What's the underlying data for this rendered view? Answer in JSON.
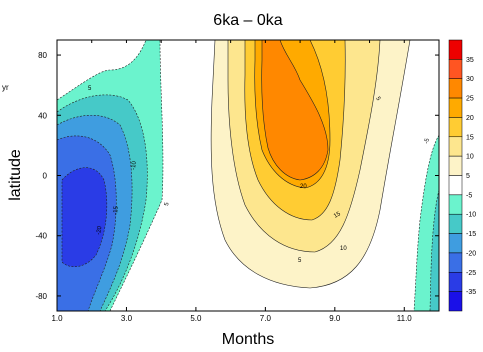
{
  "chart_data": {
    "type": "heatmap",
    "title": "6ka – 0ka",
    "xlabel": "Months",
    "ylabel": "latitude",
    "xlim": [
      1,
      12
    ],
    "ylim": [
      -90,
      90
    ],
    "x_ticks": [
      "1.0",
      "3.0",
      "5.0",
      "7.0",
      "9.0",
      "11.0"
    ],
    "y_ticks": [
      "80",
      "40",
      "0",
      "-40",
      "-80"
    ],
    "colorbar": {
      "ticks": [
        "35",
        "30",
        "25",
        "20",
        "15",
        "10",
        "5",
        "-5",
        "-10",
        "-15",
        "-20",
        "-25",
        "-35"
      ],
      "colors": [
        "#ee0000",
        "#ff5522",
        "#ff8800",
        "#ffaa00",
        "#ffcc33",
        "#fde68e",
        "#fdf3c8",
        "#ffffff",
        "#6bf3cd",
        "#46c9c8",
        "#3f9de0",
        "#3a6fe6",
        "#2a3ce6",
        "#1a10e8"
      ]
    },
    "contour_labels": [
      "5",
      "5",
      "5",
      "10",
      "15",
      "20",
      "5",
      "10",
      "15",
      "20",
      "-5",
      "-10",
      "-15",
      "-20",
      "-5"
    ],
    "grid": false,
    "legend": "right"
  },
  "side_text": "yr"
}
